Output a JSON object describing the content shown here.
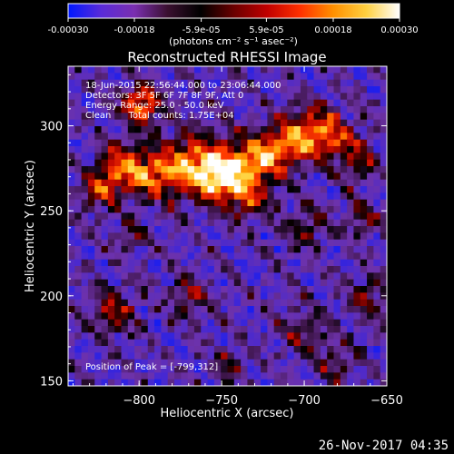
{
  "chart_data": {
    "type": "heatmap",
    "title": "Reconstructed RHESSI Image",
    "xlabel": "Heliocentric X (arcsec)",
    "ylabel": "Heliocentric Y (arcsec)",
    "xlim": [
      -843,
      -650
    ],
    "ylim": [
      147,
      335
    ],
    "xticks": [
      -800,
      -750,
      -700,
      -650
    ],
    "yticks": [
      150,
      200,
      250,
      300
    ],
    "colorbar": {
      "label": "(photons cm⁻² s⁻¹ asec⁻²)",
      "range": [
        -0.0003,
        0.0003
      ],
      "ticks": [
        {
          "value": -0.0003,
          "label": "-0.00030"
        },
        {
          "value": -0.00018,
          "label": "-0.00018"
        },
        {
          "value": -5.9e-05,
          "label": "-5.9e-05"
        },
        {
          "value": 5.9e-05,
          "label": "5.9e-05"
        },
        {
          "value": 0.00018,
          "label": "0.00018"
        },
        {
          "value": 0.0003,
          "label": "0.00030"
        }
      ],
      "colors": [
        "#0018ff",
        "#5a2bd8",
        "#7a2fb0",
        "#3a1030",
        "#000000",
        "#6a0000",
        "#c00000",
        "#ff3000",
        "#ff9000",
        "#ffd040",
        "#ffffff"
      ]
    },
    "annotations": [
      "18-Jun-2015 22:56:44.000 to 23:06:44.000",
      "Detectors: 3F 5F 6F 7F 8F 9F, Att 0",
      "Energy Range: 25.0 - 50.0 keV",
      "Clean      Total counts: 1.75E+04"
    ],
    "peak_label": "Position of Peak = [-799,312]",
    "peak": {
      "x": -799,
      "y": 312
    }
  },
  "footer": {
    "timestamp": "26-Nov-2017 04:35"
  }
}
